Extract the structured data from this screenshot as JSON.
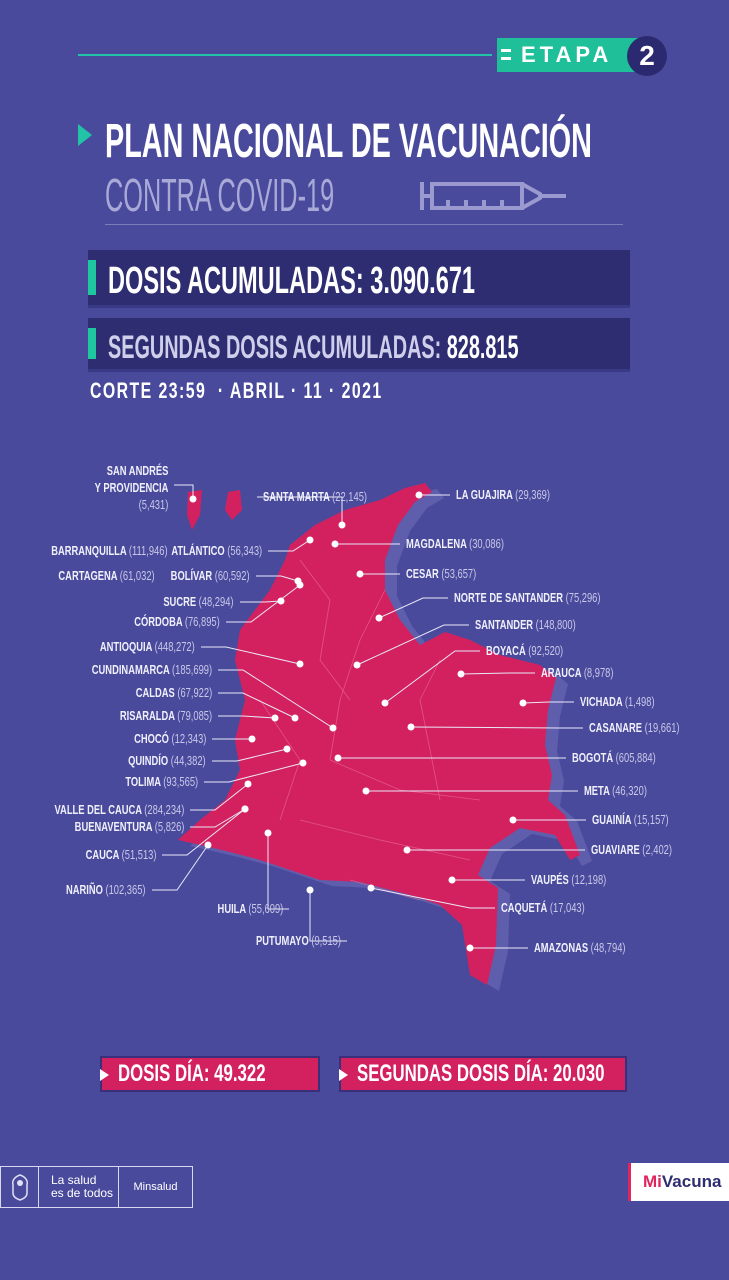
{
  "header": {
    "stage_label": "ETAPA",
    "stage_number": "2",
    "title": "PLAN NACIONAL DE VACUNACIÓN",
    "subtitle": "CONTRA COVID-19"
  },
  "stats": {
    "cumulative_label": "DOSIS ACUMULADAS:",
    "cumulative_value": "3.090.671",
    "second_label": "SEGUNDAS DOSIS ACUMULADAS:",
    "second_value": "828.815",
    "cutoff": "CORTE 23:59  · ABRIL · 11 · 2021"
  },
  "colors": {
    "background": "#4a4a9d",
    "map": "#d3215f",
    "accent": "#1fc7a0",
    "panel": "#2e2d72"
  },
  "regions": [
    {
      "name": "SAN ANDRÉS Y PROVIDENCIA",
      "value": "5,431"
    },
    {
      "name": "BARRANQUILLA",
      "value": "111,946"
    },
    {
      "name": "ATLÁNTICO",
      "value": "56,343"
    },
    {
      "name": "CARTAGENA",
      "value": "61,032"
    },
    {
      "name": "BOLÍVAR",
      "value": "60,592"
    },
    {
      "name": "SUCRE",
      "value": "48,294"
    },
    {
      "name": "CÓRDOBA",
      "value": "76,895"
    },
    {
      "name": "ANTIOQUIA",
      "value": "448,272"
    },
    {
      "name": "CUNDINAMARCA",
      "value": "185,699"
    },
    {
      "name": "CALDAS",
      "value": "67,922"
    },
    {
      "name": "RISARALDA",
      "value": "79,085"
    },
    {
      "name": "CHOCÓ",
      "value": "12,343"
    },
    {
      "name": "QUINDÍO",
      "value": "44,382"
    },
    {
      "name": "TOLIMA",
      "value": "93,565"
    },
    {
      "name": "VALLE DEL CAUCA",
      "value": "284,234"
    },
    {
      "name": "BUENAVENTURA",
      "value": "5,826"
    },
    {
      "name": "CAUCA",
      "value": "51,513"
    },
    {
      "name": "NARIÑO",
      "value": "102,365"
    },
    {
      "name": "HUILA",
      "value": "55,609"
    },
    {
      "name": "PUTUMAYO",
      "value": "9,515"
    },
    {
      "name": "SANTA MARTA",
      "value": "22,145"
    },
    {
      "name": "LA GUAJIRA",
      "value": "29,369"
    },
    {
      "name": "MAGDALENA",
      "value": "30,086"
    },
    {
      "name": "CESAR",
      "value": "53,657"
    },
    {
      "name": "NORTE DE SANTANDER",
      "value": "75,296"
    },
    {
      "name": "SANTANDER",
      "value": "148,800"
    },
    {
      "name": "BOYACÁ",
      "value": "92,520"
    },
    {
      "name": "ARAUCA",
      "value": "8,978"
    },
    {
      "name": "VICHADA",
      "value": "1,498"
    },
    {
      "name": "CASANARE",
      "value": "19,661"
    },
    {
      "name": "BOGOTÁ",
      "value": "605,884"
    },
    {
      "name": "META",
      "value": "46,320"
    },
    {
      "name": "GUAINÍA",
      "value": "15,157"
    },
    {
      "name": "GUAVIARE",
      "value": "2,402"
    },
    {
      "name": "VAUPÉS",
      "value": "12,198"
    },
    {
      "name": "CAQUETÁ",
      "value": "17,043"
    },
    {
      "name": "AMAZONAS",
      "value": "48,794"
    }
  ],
  "daily": {
    "doses_label": "DOSIS DÍA:",
    "doses_value": "49.322",
    "second_label": "SEGUNDAS DOSIS DÍA:",
    "second_value": "20.030"
  },
  "footer": {
    "slogan_line1": "La salud",
    "slogan_line2": "es de todos",
    "ministry": "Minsalud",
    "app_logo": "MiVacuna"
  }
}
